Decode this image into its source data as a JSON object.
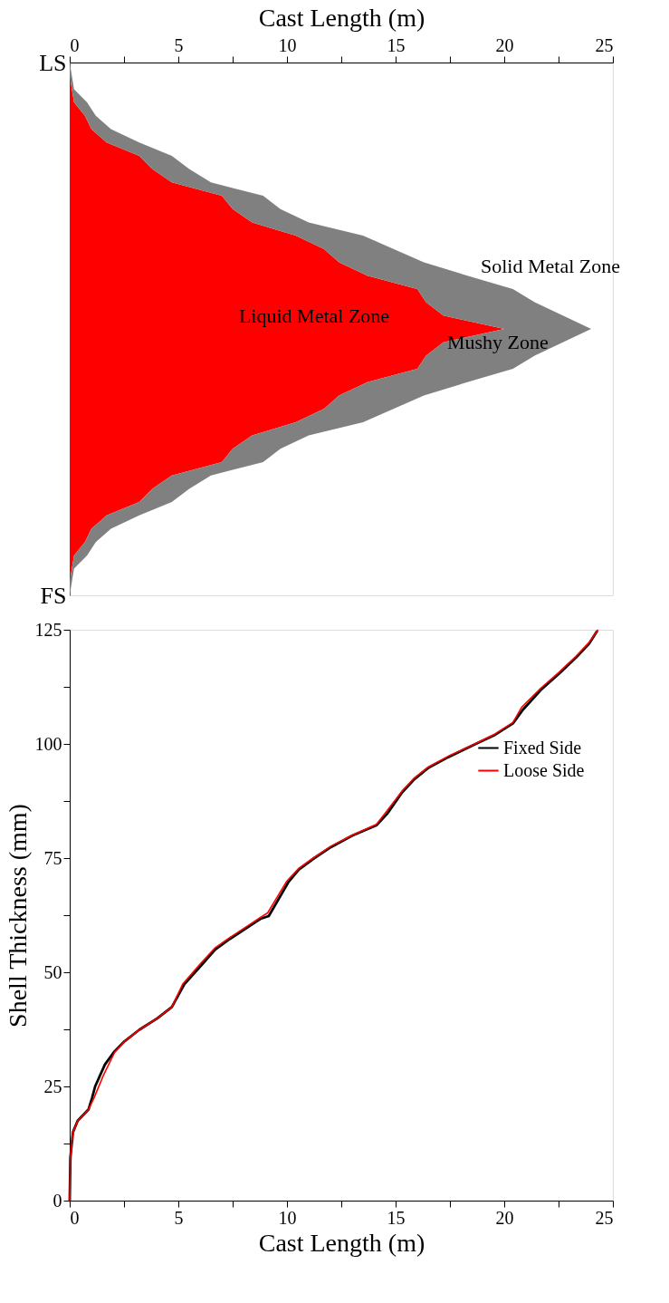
{
  "chart_data": [
    {
      "type": "area",
      "orientation": "horizontal",
      "stacked": true,
      "xlabel": "Cast Length (m)",
      "categories": [
        "LS",
        null,
        null,
        null,
        null,
        null,
        null,
        null,
        null,
        null,
        null,
        null,
        null,
        null,
        null,
        null,
        null,
        null,
        null,
        null,
        null,
        null,
        null,
        null,
        null,
        null,
        null,
        null,
        null,
        null,
        null,
        null,
        null,
        null,
        null,
        null,
        null,
        null,
        null,
        null,
        "FS"
      ],
      "xlim": [
        0,
        25
      ],
      "xticks": [
        0,
        {
          "value": 2.5,
          "label": null
        },
        5,
        {
          "value": 7.5,
          "label": null
        },
        10,
        {
          "value": 12.5,
          "label": null
        },
        15,
        {
          "value": 17.5,
          "label": null
        },
        20,
        {
          "value": 22.5,
          "label": null
        },
        25
      ],
      "series": [
        {
          "name": "Liquid Metal Zone",
          "color": "#ff0000",
          "values": [
            0,
            0,
            0.1,
            0.2,
            0.7,
            1.0,
            1.7,
            3.2,
            3.8,
            4.7,
            7.0,
            7.5,
            8.4,
            10.4,
            11.7,
            12.4,
            13.7,
            16.0,
            16.4,
            17.2,
            20.0,
            17.2,
            16.4,
            16.0,
            13.7,
            12.4,
            11.7,
            10.4,
            8.4,
            7.5,
            7.0,
            4.7,
            3.8,
            3.2,
            1.7,
            1.0,
            0.7,
            0.2,
            0.1,
            0,
            0
          ]
        },
        {
          "name": "Mushy Zone",
          "color": "#808080",
          "values": [
            0,
            0.1,
            0.1,
            0.6,
            0.5,
            0.9,
            1.5,
            1.5,
            1.7,
            1.8,
            1.9,
            2.2,
            2.6,
            3.1,
            3.2,
            3.9,
            4.6,
            4.4,
            5.0,
            5.5,
            4.0,
            5.5,
            5.0,
            4.4,
            4.6,
            3.9,
            3.2,
            3.1,
            2.6,
            2.2,
            1.9,
            1.8,
            1.7,
            1.5,
            1.5,
            0.9,
            0.5,
            0.6,
            0.1,
            0.1,
            0
          ]
        }
      ],
      "annotations": [
        "Solid Metal Zone"
      ]
    },
    {
      "type": "line",
      "xlabel": "Cast Length (m)",
      "ylabel": "Shell Thickness (mm)",
      "legend": "top right",
      "xlim": [
        0,
        25
      ],
      "ylim": [
        0,
        125
      ],
      "xticks": [
        0,
        {
          "value": 2.5,
          "label": null
        },
        5,
        {
          "value": 7.5,
          "label": null
        },
        10,
        {
          "value": 12.5,
          "label": null
        },
        15,
        {
          "value": 17.5,
          "label": null
        },
        20,
        {
          "value": 22.5,
          "label": null
        },
        25
      ],
      "yticks": [
        0,
        {
          "value": 12.5,
          "label": null
        },
        25,
        {
          "value": 37.5,
          "label": null
        },
        50,
        {
          "value": 62.5,
          "label": null
        },
        75,
        {
          "value": 87.5,
          "label": null
        },
        100,
        {
          "value": 112.5,
          "label": null
        },
        125
      ],
      "series": [
        {
          "name": "Fixed Side",
          "color": "#000000",
          "x": [
            0,
            0.03,
            0.15,
            0.37,
            0.87,
            1.03,
            1.17,
            1.62,
            2.03,
            2.53,
            3.2,
            4.03,
            4.7,
            5.28,
            6.03,
            6.7,
            7.37,
            8.78,
            9.16,
            10.06,
            10.55,
            11.2,
            12.02,
            13.0,
            14.12,
            14.61,
            15.3,
            15.87,
            16.52,
            17.42,
            18.73,
            19.58,
            20.4,
            20.86,
            21.68,
            22.5,
            23.3,
            23.9,
            24.26
          ],
          "values": [
            0,
            9.4,
            15,
            17.5,
            20,
            22.5,
            25,
            29.8,
            32.5,
            34.9,
            37.4,
            39.9,
            42.4,
            47.4,
            51.4,
            55,
            57.3,
            61.7,
            62.3,
            69.7,
            72.5,
            74.8,
            77.4,
            79.9,
            82.2,
            84.7,
            89.4,
            92.3,
            94.8,
            97.1,
            100.1,
            102.0,
            104.5,
            107.5,
            111.8,
            115.3,
            118.9,
            121.9,
            124.6
          ]
        },
        {
          "name": "Loose Side",
          "color": "#ff0000",
          "x": [
            0,
            0.03,
            0.15,
            0.37,
            0.87,
            1.12,
            1.53,
            2.07,
            2.53,
            3.2,
            4.03,
            4.7,
            5.2,
            6.0,
            6.7,
            7.37,
            8.78,
            9.11,
            10.0,
            10.55,
            11.2,
            12.02,
            13.0,
            14.12,
            14.55,
            15.3,
            15.87,
            16.52,
            17.42,
            18.73,
            19.58,
            20.4,
            20.8,
            21.68,
            22.5,
            23.3,
            23.9,
            24.3
          ],
          "values": [
            0,
            9.4,
            15,
            17.5,
            20,
            22.5,
            27.2,
            32.5,
            34.9,
            37.4,
            39.9,
            42.4,
            47.4,
            51.8,
            55.4,
            57.6,
            62.0,
            63.0,
            70.0,
            72.8,
            75.0,
            77.6,
            80.0,
            82.4,
            85.0,
            89.7,
            92.6,
            95.0,
            97.3,
            100.2,
            102.2,
            104.7,
            108.0,
            112.2,
            115.6,
            119.2,
            122.2,
            124.9
          ]
        }
      ]
    }
  ]
}
